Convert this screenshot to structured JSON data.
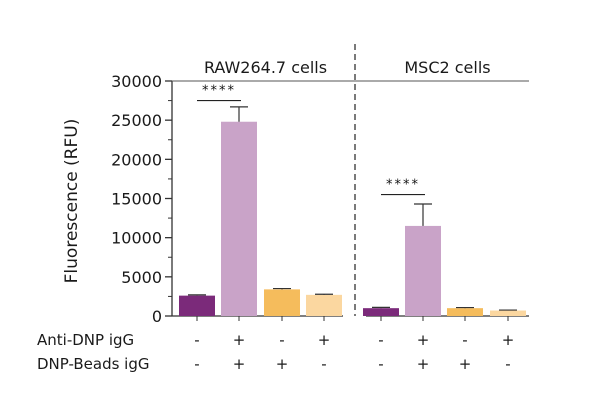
{
  "chart_data": {
    "type": "bar",
    "ylabel": "Fluorescence (RFU)",
    "ylim": [
      0,
      30000
    ],
    "yticks": [
      0,
      5000,
      10000,
      15000,
      20000,
      25000,
      30000
    ],
    "ytick_labels": [
      "0",
      "5000",
      "10000",
      "15000",
      "20000",
      "25000",
      "30000"
    ],
    "condition_rows": [
      {
        "label": "Anti-DNP igG",
        "signs": [
          "-",
          "+",
          "-",
          "+",
          "-",
          "+",
          "-",
          "+"
        ]
      },
      {
        "label": "DNP-Beads igG",
        "signs": [
          "-",
          "+",
          "+",
          "-",
          "-",
          "+",
          "+",
          "-"
        ]
      }
    ],
    "groups": [
      {
        "name": "RAW264.7 cells",
        "bars": [
          {
            "value": 2600,
            "error": 100,
            "color": "#7b2a7a"
          },
          {
            "value": 24800,
            "error": 1900,
            "color": "#c9a3c8"
          },
          {
            "value": 3400,
            "error": 100,
            "color": "#f5bc5c"
          },
          {
            "value": 2700,
            "error": 80,
            "color": "#fbd7a0"
          }
        ],
        "significance": {
          "label": "****",
          "bar_index": 1,
          "level": 27500
        }
      },
      {
        "name": "MSC2 cells",
        "bars": [
          {
            "value": 1000,
            "error": 100,
            "color": "#7b2a7a"
          },
          {
            "value": 11500,
            "error": 2800,
            "color": "#c9a3c8"
          },
          {
            "value": 1000,
            "error": 80,
            "color": "#f5bc5c"
          },
          {
            "value": 700,
            "error": 60,
            "color": "#fbd7a0"
          }
        ],
        "significance": {
          "label": "****",
          "bar_index": 1,
          "level": 15500
        }
      }
    ]
  }
}
